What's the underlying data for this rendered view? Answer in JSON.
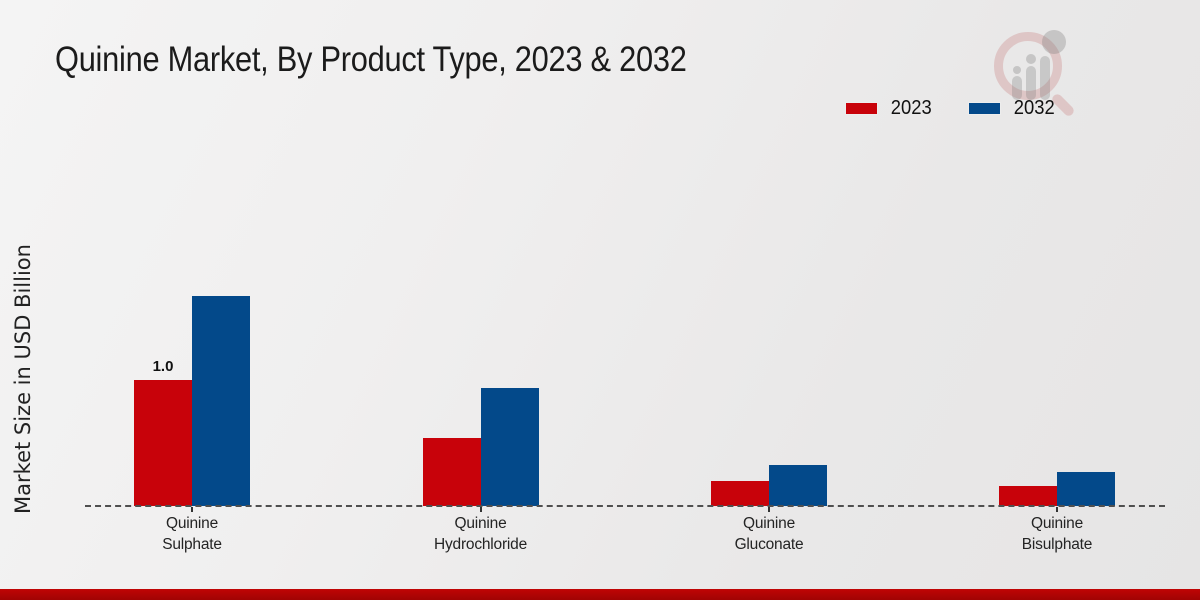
{
  "title": "Quinine Market, By Product Type, 2023 & 2032",
  "ylabel": "Market Size in USD Billion",
  "legend": {
    "items": [
      {
        "label": "2023",
        "color": "#c8020a"
      },
      {
        "label": "2032",
        "color": "#03498a"
      }
    ]
  },
  "watermark": {
    "name": "market-research-logo"
  },
  "footer": {
    "bar_color": "#c00505",
    "bar_color_dark": "#a00303"
  },
  "chart_data": {
    "type": "bar",
    "title": "Quinine Market, By Product Type, 2023 & 2032",
    "xlabel": "",
    "ylabel": "Market Size in USD Billion",
    "categories": [
      "Quinine Sulphate",
      "Quinine Hydrochloride",
      "Quinine Gluconate",
      "Quinine Bisulphate"
    ],
    "series": [
      {
        "name": "2023",
        "color": "#c8020a",
        "values": [
          1.0,
          0.54,
          0.2,
          0.16
        ]
      },
      {
        "name": "2032",
        "color": "#03498a",
        "values": [
          1.67,
          0.94,
          0.33,
          0.27
        ]
      }
    ],
    "data_labels": [
      {
        "series_index": 0,
        "category_index": 0,
        "text": "1.0"
      }
    ],
    "ylim": [
      0,
      1.9
    ],
    "grid": false,
    "baseline_style": "dashed",
    "legend_position": "top-right"
  }
}
